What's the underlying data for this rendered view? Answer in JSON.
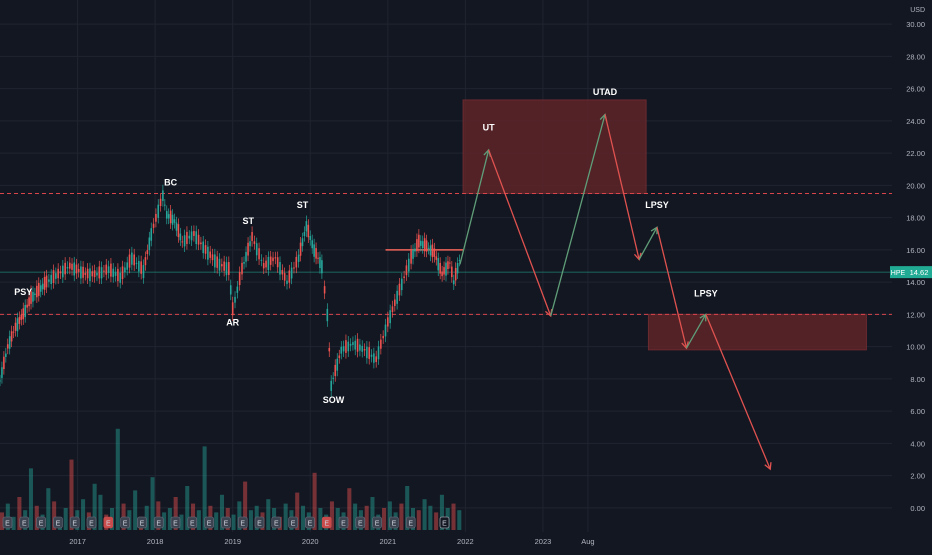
{
  "chart_data": {
    "type": "line",
    "instrument": "HPE",
    "currency_label": "USD",
    "last_price_label": "14.62",
    "last_price": 14.62,
    "ylim": [
      -1.5,
      31.5
    ],
    "y_ticks": [
      0,
      2,
      4,
      6,
      8,
      10,
      12,
      14,
      16,
      18,
      20,
      22,
      24,
      26,
      28,
      30
    ],
    "y_tick_labels": [
      "0.00",
      "2.00",
      "4.00",
      "6.00",
      "8.00",
      "10.00",
      "12.00",
      "14.00",
      "16.00",
      "18.00",
      "20.00",
      "22.00",
      "24.00",
      "26.00",
      "28.00",
      "30.00"
    ],
    "x_range": [
      2016.0,
      2023.86
    ],
    "x_ticks": [
      2017,
      2018,
      2019,
      2020,
      2021,
      2022,
      2023,
      2023.58
    ],
    "x_tick_labels": [
      "2017",
      "2018",
      "2019",
      "2020",
      "2021",
      "2022",
      "2023",
      "Aug"
    ],
    "grid": true,
    "price_series": {
      "x": [
        2016.0,
        2016.1,
        2016.2,
        2016.3,
        2016.4,
        2016.5,
        2016.6,
        2016.75,
        2016.9,
        2017.1,
        2017.25,
        2017.4,
        2017.55,
        2017.7,
        2017.85,
        2017.95,
        2018.1,
        2018.15,
        2018.25,
        2018.35,
        2018.5,
        2018.65,
        2018.8,
        2018.95,
        2019.0,
        2019.12,
        2019.25,
        2019.4,
        2019.55,
        2019.7,
        2019.85,
        2019.95,
        2020.05,
        2020.15,
        2020.22,
        2020.27,
        2020.4,
        2020.55,
        2020.7,
        2020.85,
        2021.0,
        2021.15,
        2021.3,
        2021.4,
        2021.5,
        2021.6,
        2021.7,
        2021.8,
        2021.85,
        2021.95
      ],
      "y": [
        7.9,
        10.0,
        11.2,
        12.0,
        13.0,
        13.5,
        14.0,
        14.5,
        15.0,
        14.5,
        14.5,
        14.8,
        14.3,
        15.5,
        14.7,
        17.0,
        19.4,
        18.2,
        17.8,
        16.5,
        17.0,
        16.0,
        15.2,
        14.8,
        12.3,
        14.8,
        16.8,
        15.0,
        15.5,
        14.0,
        15.5,
        17.5,
        16.0,
        15.0,
        12.0,
        7.6,
        9.8,
        10.2,
        9.8,
        9.2,
        11.5,
        13.5,
        15.5,
        16.5,
        16.2,
        15.8,
        14.5,
        15.2,
        14.0,
        15.8
      ]
    },
    "volume_note": "volume bars along bottom",
    "volume_series": [
      0.8,
      1.2,
      0.6,
      1.5,
      0.9,
      2.8,
      1.1,
      0.7,
      1.9,
      1.3,
      0.5,
      1.0,
      3.2,
      0.9,
      1.4,
      0.8,
      2.1,
      1.6,
      0.7,
      1.0,
      4.6,
      1.2,
      0.9,
      1.8,
      0.6,
      1.1,
      2.4,
      1.3,
      0.8,
      1.0,
      1.5,
      0.7,
      2.0,
      1.2,
      0.9,
      3.8,
      1.1,
      0.8,
      1.6,
      1.0,
      0.7,
      1.3,
      2.2,
      0.9,
      1.1,
      0.8,
      1.4,
      1.0,
      0.6,
      1.2,
      0.9,
      1.7,
      1.1,
      0.8,
      2.6,
      1.0,
      0.7,
      1.3,
      1.0,
      0.8,
      1.9,
      1.2,
      0.9,
      1.1,
      1.5,
      0.7,
      1.0,
      1.3,
      0.8,
      1.2,
      2.0,
      1.0,
      0.9,
      1.4,
      1.1,
      0.8,
      1.6,
      1.0,
      1.2,
      0.9
    ],
    "dashed_levels": [
      19.5,
      12.0
    ],
    "resistance_segment": {
      "x1": 2020.97,
      "x2": 2021.97,
      "y": 16.0
    },
    "zones": [
      {
        "x1": 2021.97,
        "x2": 2024.33,
        "y1": 19.5,
        "y2": 25.3,
        "color": "#5d2428"
      },
      {
        "x1": 2024.36,
        "x2": 2027.17,
        "y1": 9.8,
        "y2": 12.0,
        "color": "#5d2428"
      }
    ],
    "projection": [
      {
        "x": 2021.93,
        "y": 15.1
      },
      {
        "x": 2022.3,
        "y": 22.2
      },
      {
        "x": 2023.1,
        "y": 11.9
      },
      {
        "x": 2023.8,
        "y": 24.4
      },
      {
        "x": 2024.24,
        "y": 15.4
      },
      {
        "x": 2024.47,
        "y": 17.4
      },
      {
        "x": 2024.85,
        "y": 9.9
      },
      {
        "x": 2025.1,
        "y": 12.0
      },
      {
        "x": 2025.93,
        "y": 2.4
      }
    ],
    "annotations": [
      {
        "text": "PSY",
        "x": 2016.3,
        "y": 13.2
      },
      {
        "text": "BC",
        "x": 2018.2,
        "y": 20.0
      },
      {
        "text": "ST",
        "x": 2019.2,
        "y": 17.6
      },
      {
        "text": "AR",
        "x": 2019.0,
        "y": 11.3
      },
      {
        "text": "ST",
        "x": 2019.9,
        "y": 18.6
      },
      {
        "text": "SOW",
        "x": 2020.3,
        "y": 6.5
      },
      {
        "text": "UT",
        "x": 2022.3,
        "y": 23.4
      },
      {
        "text": "UTAD",
        "x": 2023.8,
        "y": 25.6
      },
      {
        "text": "LPSY",
        "x": 2024.47,
        "y": 18.6
      },
      {
        "text": "LPSY",
        "x": 2025.1,
        "y": 13.1
      }
    ],
    "earnings_markers": {
      "label": "E",
      "count": 25
    }
  },
  "colors": {
    "background": "#131722",
    "grid": "#1f2430",
    "up": "#26a69a",
    "down": "#ef5350",
    "projection_up": "#5f9e78",
    "projection_down": "#e0524f",
    "dashed": "#d9454b",
    "price_tag": "#22ab94"
  }
}
